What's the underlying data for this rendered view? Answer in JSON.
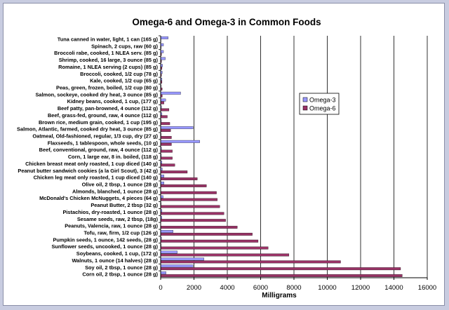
{
  "chart_data": {
    "type": "bar",
    "orientation": "horizontal",
    "title": "Omega-6 and Omega-3 in Common Foods",
    "xlabel": "Milligrams",
    "ylabel": "",
    "xlim": [
      0,
      16000
    ],
    "xticks": [
      "0",
      "2000",
      "4000",
      "6000",
      "8000",
      "10000",
      "12000",
      "14000",
      "16000"
    ],
    "grid": "vertical",
    "legend_position": "right",
    "categories": [
      "Tuna canned in water, light, 1 can (165 g)",
      "Spinach, 2 cups, raw (60 g)",
      "Broccoli rabe, cooked, 1 NLEA serv. (85 g)",
      "Shrimp, cooked, 16 large, 3 ounce (85 g)",
      "Romaine, 1 NLEA serving (2 cups) (85 g)",
      "Broccoli, cooked, 1/2 cup (78 g)",
      "Kale, cooked, 1/2 cup (65 g)",
      "Peas, green, frozen, boiled, 1/2 cup (80 g)",
      "Salmon, sockeye, cooked dry heat, 3 ounce (85 g)",
      "Kidney beans, cooked, 1 cup, (177 g)",
      "Beef patty, pan-browned, 4 ounce (112 g)",
      "Beef, grass-fed, ground, raw, 4 ounce (112 g)",
      "Brown rice, medium grain, cooked, 1 cup (195 g)",
      "Salmon, Atlantic, farmed, cooked dry heat, 3 ounce (85 g)",
      "Oatmeal, Old-fashioned, regular, 1/3 cup, dry (27 g)",
      "Flaxseeds, 1 tablespoon, whole seeds, (10 g)",
      "Beef, conventional, ground, raw, 4 ounce (112 g)",
      "Corn, 1 large ear, 8 in. boiled, (118 g)",
      "Chicken breast meat only roasted, 1 cup diced (140 g)",
      "Peanut butter sandwich cookies (a la Girl Scout), 3 (42 g)",
      "Chicken leg meat only roasted, 1 cup diced (140 g)",
      "Olive oil, 2 tbsp, 1 ounce (28 g)",
      "Almonds, blanched, 1 ounce (28 g)",
      "McDonald's Chicken McNuggets, 4 pieces (64 g)",
      "Peanut Butter, 2 tbsp (32 g)",
      "Pistachios, dry-roasted, 1 ounce (28 g)",
      "Sesame seeds, raw, 2 tbsp, (18g)",
      "Peanuts, Valencia, raw, 1 ounce (28 g)",
      "Tofu, raw, firm, 1/2 cup (126 g)",
      "Pumpkin seeds, 1 ounce, 142 seeds, (28 g)",
      "Sunflower seeds, uncooked, 1 ounce (28 g)",
      "Soybeans, cooked, 1 cup, (172 g)",
      "Walnuts, 1 ounce (14 halves) (28 g)",
      "Soy oil, 2 tbsp, 1 ounce (28 g)",
      "Corn oil, 2 tbsp, 1 ounce (28 g)"
    ],
    "series": [
      {
        "name": "Omega-3",
        "color": "#9999ff",
        "values": [
          450,
          170,
          170,
          280,
          120,
          100,
          80,
          30,
          1200,
          300,
          50,
          80,
          40,
          1950,
          30,
          2350,
          50,
          40,
          80,
          100,
          200,
          200,
          10,
          150,
          30,
          80,
          70,
          0,
          750,
          50,
          30,
          1000,
          2600,
          1950,
          320
        ]
      },
      {
        "name": "Omega-6",
        "color": "#993366",
        "values": [
          20,
          30,
          50,
          50,
          80,
          50,
          80,
          90,
          100,
          200,
          500,
          400,
          550,
          600,
          650,
          650,
          700,
          700,
          850,
          1600,
          2200,
          2750,
          3350,
          3400,
          3550,
          3800,
          3900,
          4600,
          5500,
          5850,
          6450,
          7700,
          10800,
          14400,
          14500
        ]
      }
    ]
  }
}
